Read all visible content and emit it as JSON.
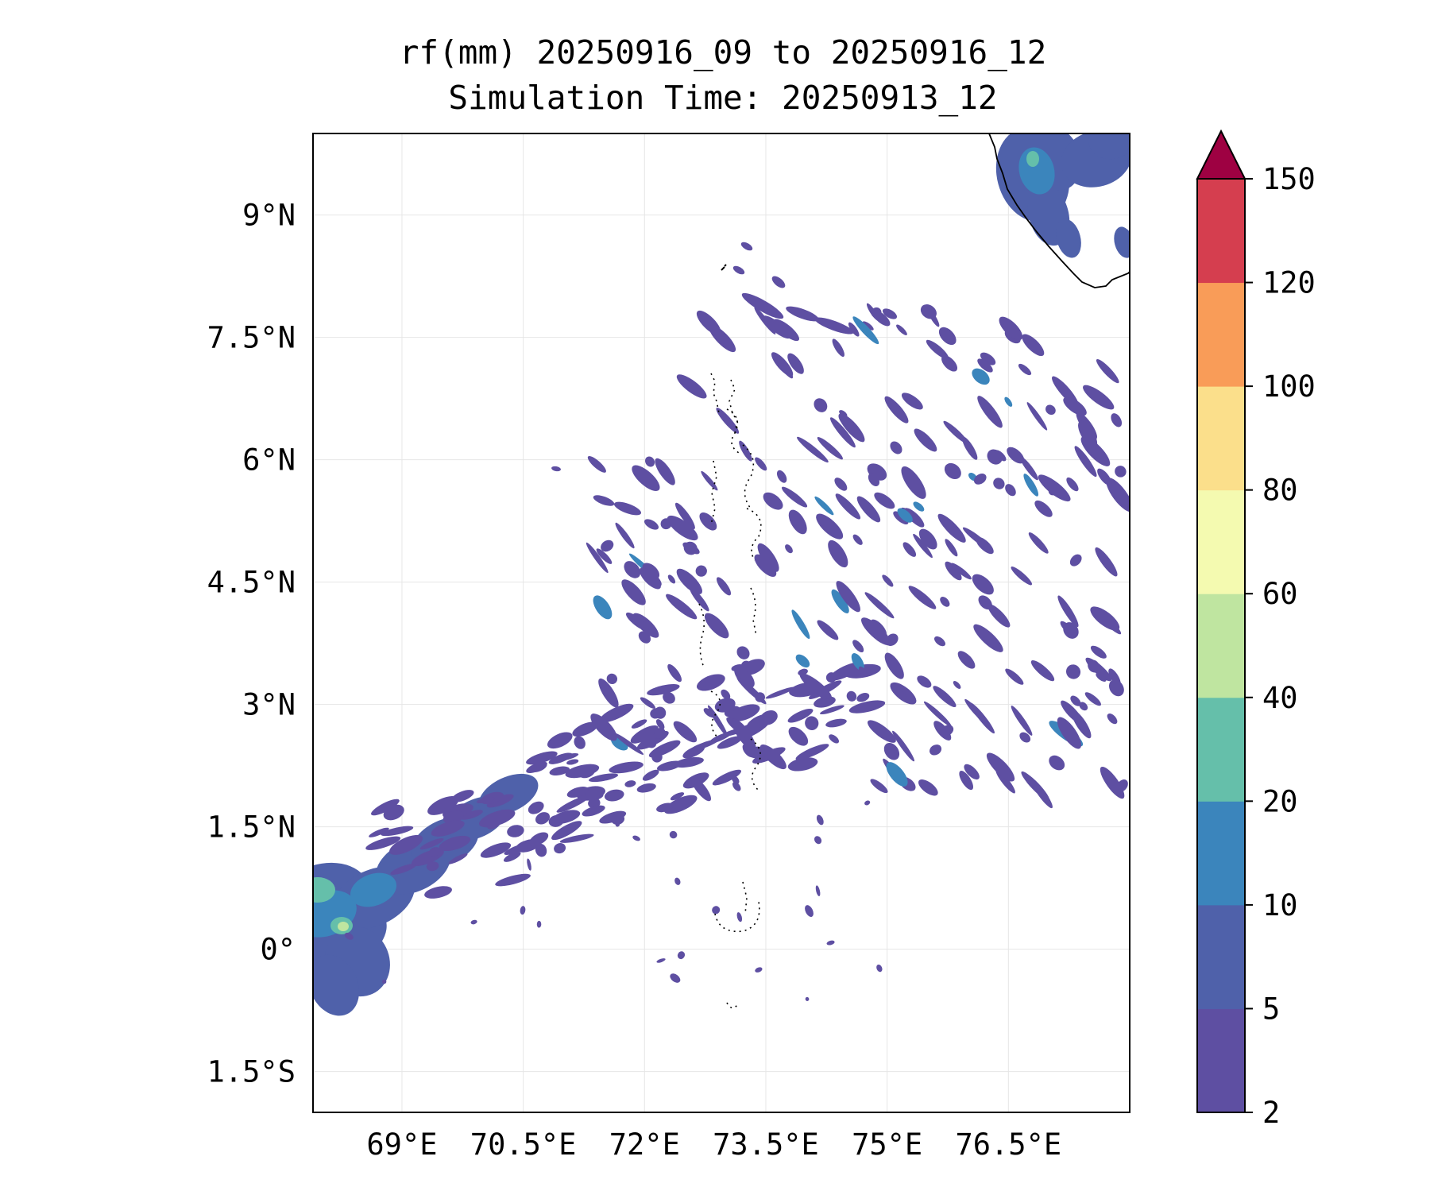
{
  "title": {
    "line1": "rf(mm) 20250916_09 to 20250916_12",
    "line2": "Simulation Time: 20250913_12"
  },
  "map": {
    "lon_range": [
      67.9,
      78.0
    ],
    "lat_range": [
      -2.0,
      10.0
    ],
    "x_ticks": [
      {
        "value": 69.0,
        "label": "69°E"
      },
      {
        "value": 70.5,
        "label": "70.5°E"
      },
      {
        "value": 72.0,
        "label": "72°E"
      },
      {
        "value": 73.5,
        "label": "73.5°E"
      },
      {
        "value": 75.0,
        "label": "75°E"
      },
      {
        "value": 76.5,
        "label": "76.5°E"
      }
    ],
    "y_ticks": [
      {
        "value": 9.0,
        "label": "9°N"
      },
      {
        "value": 7.5,
        "label": "7.5°N"
      },
      {
        "value": 6.0,
        "label": "6°N"
      },
      {
        "value": 4.5,
        "label": "4.5°N"
      },
      {
        "value": 3.0,
        "label": "3°N"
      },
      {
        "value": 1.5,
        "label": "1.5°N"
      },
      {
        "value": 0.0,
        "label": "0°"
      },
      {
        "value": -1.5,
        "label": "1.5°S"
      }
    ],
    "grid": true,
    "colorbar": {
      "levels": [
        {
          "value": 2,
          "label": "2"
        },
        {
          "value": 5,
          "label": "5"
        },
        {
          "value": 10,
          "label": "10"
        },
        {
          "value": 20,
          "label": "20"
        },
        {
          "value": 40,
          "label": "40"
        },
        {
          "value": 60,
          "label": "60"
        },
        {
          "value": 80,
          "label": "80"
        },
        {
          "value": 100,
          "label": "100"
        },
        {
          "value": 120,
          "label": "120"
        },
        {
          "value": 150,
          "label": "150"
        }
      ],
      "colors": [
        "#5e4fa2",
        "#4f61aa",
        "#3b85bc",
        "#65bfaa",
        "#bfe5a0",
        "#f4fab0",
        "#fbdf8b",
        "#f99c58",
        "#d53e4f"
      ],
      "extend_color": "#9e0142",
      "extend": "max"
    },
    "rain_colors": {
      "light": "#5e4fa2",
      "moderate": "#4f61aa",
      "heavy": "#3b85bc",
      "very_heavy": "#65bfaa",
      "peak": "#bfe5a0"
    }
  }
}
